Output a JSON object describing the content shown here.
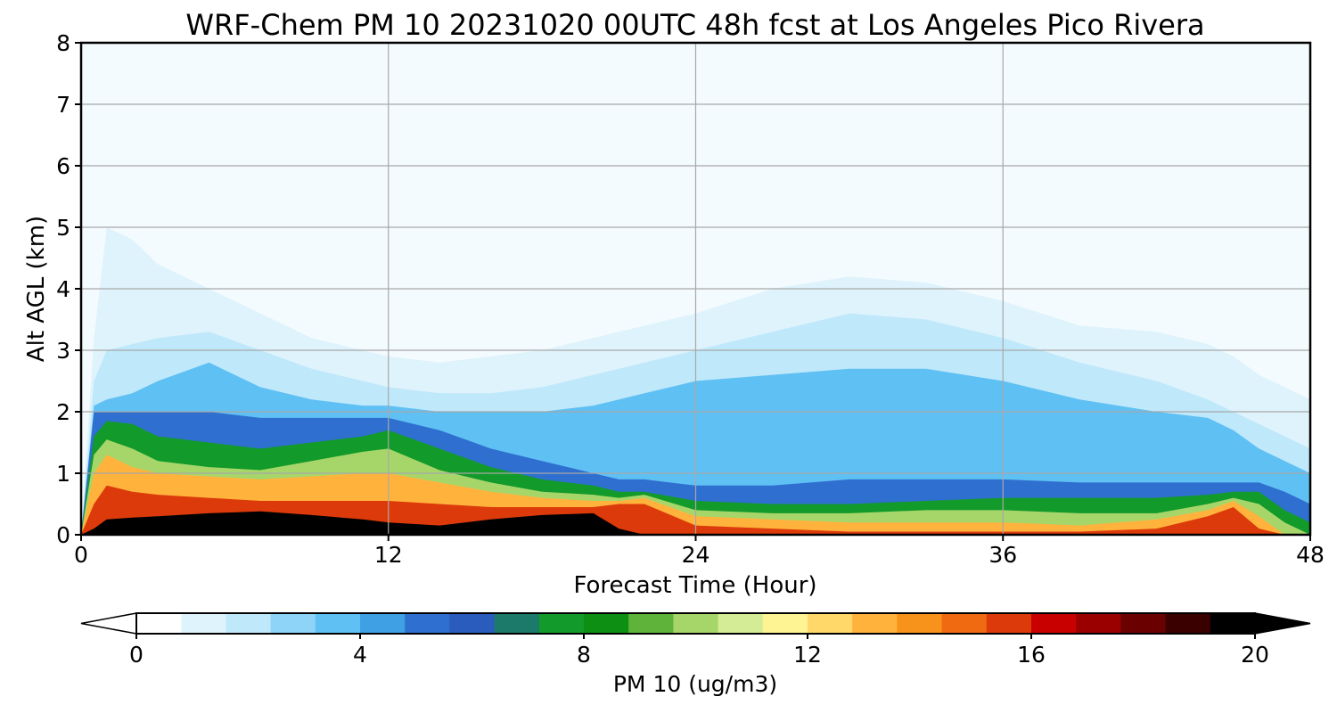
{
  "chart_data": {
    "type": "heatmap",
    "title": "WRF-Chem PM 10  20231020 00UTC 48h fcst at Los Angeles Pico Rivera",
    "xlabel": "Forecast Time (Hour)",
    "ylabel": "Alt AGL (km)",
    "xlim": [
      0,
      48
    ],
    "ylim": [
      0,
      8
    ],
    "xticks": [
      0,
      12,
      24,
      36,
      48
    ],
    "yticks": [
      0,
      1,
      2,
      3,
      4,
      5,
      6,
      7,
      8
    ],
    "grid": true,
    "colorbar": {
      "label": "PM 10  (ug/m3)",
      "range": [
        0,
        20
      ],
      "ticks": [
        0,
        4,
        8,
        12,
        16,
        20
      ],
      "extend": "both",
      "orientation": "horizontal",
      "colors": [
        "#ffffff",
        "#dff3fc",
        "#bfe8fb",
        "#8ed4f8",
        "#5fc0f3",
        "#3fa0e4",
        "#2f6fd0",
        "#2a5cbe",
        "#1c7a6a",
        "#129a2a",
        "#0d8f13",
        "#5fb33a",
        "#a6d66a",
        "#d4ec96",
        "#fff494",
        "#ffd869",
        "#ffb33c",
        "#f7931a",
        "#ef6a10",
        "#dc3a0a",
        "#c80000",
        "#9b0000",
        "#6a0000",
        "#3a0000",
        "#000000"
      ]
    },
    "x_hours": [
      0,
      0.5,
      1,
      2,
      3,
      5,
      7,
      9,
      11,
      12,
      14,
      16,
      18,
      20,
      21,
      22,
      24,
      27,
      30,
      33,
      36,
      39,
      42,
      44,
      45,
      46,
      47,
      48
    ],
    "layers": [
      {
        "value": 1,
        "top_km": [
          0,
          3.2,
          5.0,
          4.8,
          4.4,
          4.0,
          3.6,
          3.2,
          3.0,
          2.9,
          2.8,
          2.9,
          3.0,
          3.2,
          3.3,
          3.4,
          3.6,
          4.0,
          4.2,
          4.1,
          3.8,
          3.4,
          3.3,
          3.1,
          2.9,
          2.6,
          2.4,
          2.2
        ]
      },
      {
        "value": 2,
        "top_km": [
          0,
          2.5,
          3.0,
          3.1,
          3.2,
          3.3,
          3.0,
          2.7,
          2.5,
          2.4,
          2.3,
          2.3,
          2.4,
          2.6,
          2.7,
          2.8,
          3.0,
          3.3,
          3.6,
          3.5,
          3.2,
          2.8,
          2.5,
          2.2,
          2.0,
          1.8,
          1.6,
          1.4
        ]
      },
      {
        "value": 3,
        "top_km": [
          0,
          2.1,
          2.2,
          2.3,
          2.5,
          2.8,
          2.4,
          2.2,
          2.1,
          2.1,
          2.0,
          2.0,
          2.0,
          2.1,
          2.2,
          2.3,
          2.5,
          2.6,
          2.7,
          2.7,
          2.5,
          2.2,
          2.0,
          1.9,
          1.7,
          1.4,
          1.2,
          1.0
        ]
      },
      {
        "value": 5,
        "top_km": [
          0,
          2.0,
          2.0,
          2.0,
          2.0,
          2.0,
          1.9,
          1.9,
          1.9,
          1.9,
          1.7,
          1.4,
          1.2,
          1.0,
          0.9,
          0.9,
          0.8,
          0.8,
          0.9,
          0.9,
          0.9,
          0.85,
          0.85,
          0.85,
          0.85,
          0.85,
          0.7,
          0.5
        ]
      },
      {
        "value": 7.5,
        "top_km": [
          0,
          1.6,
          1.85,
          1.8,
          1.6,
          1.5,
          1.4,
          1.5,
          1.6,
          1.7,
          1.4,
          1.1,
          0.9,
          0.8,
          0.7,
          0.7,
          0.55,
          0.5,
          0.5,
          0.55,
          0.6,
          0.6,
          0.6,
          0.65,
          0.7,
          0.7,
          0.4,
          0.2
        ]
      },
      {
        "value": 10,
        "top_km": [
          0,
          1.3,
          1.55,
          1.4,
          1.2,
          1.1,
          1.05,
          1.2,
          1.35,
          1.4,
          1.05,
          0.85,
          0.7,
          0.65,
          0.6,
          0.65,
          0.4,
          0.35,
          0.35,
          0.4,
          0.4,
          0.35,
          0.35,
          0.5,
          0.6,
          0.5,
          0.2,
          0
        ]
      },
      {
        "value": 13,
        "top_km": [
          0,
          1.0,
          1.3,
          1.1,
          1.0,
          0.95,
          0.9,
          0.95,
          1.0,
          1.0,
          0.85,
          0.7,
          0.6,
          0.55,
          0.55,
          0.6,
          0.3,
          0.25,
          0.2,
          0.2,
          0.2,
          0.15,
          0.25,
          0.4,
          0.55,
          0.3,
          0,
          0
        ]
      },
      {
        "value": 16,
        "top_km": [
          0,
          0.5,
          0.8,
          0.7,
          0.65,
          0.6,
          0.55,
          0.55,
          0.55,
          0.55,
          0.5,
          0.45,
          0.45,
          0.45,
          0.5,
          0.5,
          0.15,
          0.1,
          0.05,
          0.05,
          0.05,
          0.05,
          0.1,
          0.3,
          0.45,
          0.1,
          0,
          0
        ]
      },
      {
        "value": 20,
        "top_km": [
          0,
          0.1,
          0.25,
          0.28,
          0.3,
          0.35,
          0.38,
          0.32,
          0.25,
          0.2,
          0.15,
          0.25,
          0.32,
          0.35,
          0.1,
          0,
          0,
          0,
          0,
          0,
          0,
          0,
          0,
          0,
          0,
          0,
          0,
          0
        ]
      }
    ]
  }
}
